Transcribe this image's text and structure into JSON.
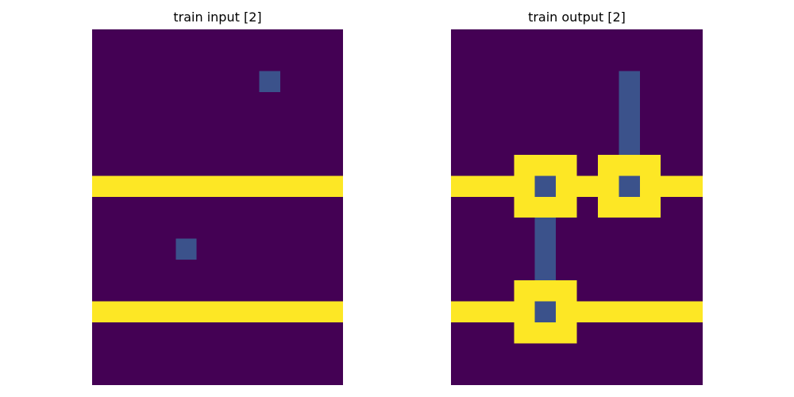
{
  "colors": {
    "0": "#440154",
    "1": "#3b528b",
    "4": "#fde725"
  },
  "panels": [
    {
      "title": "train input [2]",
      "grid": [
        [
          0,
          0,
          0,
          0,
          0,
          0,
          0,
          0,
          0,
          0,
          0,
          0
        ],
        [
          0,
          0,
          0,
          0,
          0,
          0,
          0,
          0,
          0,
          0,
          0,
          0
        ],
        [
          0,
          0,
          0,
          0,
          0,
          0,
          0,
          0,
          1,
          0,
          0,
          0
        ],
        [
          0,
          0,
          0,
          0,
          0,
          0,
          0,
          0,
          0,
          0,
          0,
          0
        ],
        [
          0,
          0,
          0,
          0,
          0,
          0,
          0,
          0,
          0,
          0,
          0,
          0
        ],
        [
          0,
          0,
          0,
          0,
          0,
          0,
          0,
          0,
          0,
          0,
          0,
          0
        ],
        [
          0,
          0,
          0,
          0,
          0,
          0,
          0,
          0,
          0,
          0,
          0,
          0
        ],
        [
          4,
          4,
          4,
          4,
          4,
          4,
          4,
          4,
          4,
          4,
          4,
          4
        ],
        [
          0,
          0,
          0,
          0,
          0,
          0,
          0,
          0,
          0,
          0,
          0,
          0
        ],
        [
          0,
          0,
          0,
          0,
          0,
          0,
          0,
          0,
          0,
          0,
          0,
          0
        ],
        [
          0,
          0,
          0,
          0,
          1,
          0,
          0,
          0,
          0,
          0,
          0,
          0
        ],
        [
          0,
          0,
          0,
          0,
          0,
          0,
          0,
          0,
          0,
          0,
          0,
          0
        ],
        [
          0,
          0,
          0,
          0,
          0,
          0,
          0,
          0,
          0,
          0,
          0,
          0
        ],
        [
          4,
          4,
          4,
          4,
          4,
          4,
          4,
          4,
          4,
          4,
          4,
          4
        ],
        [
          0,
          0,
          0,
          0,
          0,
          0,
          0,
          0,
          0,
          0,
          0,
          0
        ],
        [
          0,
          0,
          0,
          0,
          0,
          0,
          0,
          0,
          0,
          0,
          0,
          0
        ],
        [
          0,
          0,
          0,
          0,
          0,
          0,
          0,
          0,
          0,
          0,
          0,
          0
        ]
      ]
    },
    {
      "title": "train output [2]",
      "grid": [
        [
          0,
          0,
          0,
          0,
          0,
          0,
          0,
          0,
          0,
          0,
          0,
          0
        ],
        [
          0,
          0,
          0,
          0,
          0,
          0,
          0,
          0,
          0,
          0,
          0,
          0
        ],
        [
          0,
          0,
          0,
          0,
          0,
          0,
          0,
          0,
          1,
          0,
          0,
          0
        ],
        [
          0,
          0,
          0,
          0,
          0,
          0,
          0,
          0,
          1,
          0,
          0,
          0
        ],
        [
          0,
          0,
          0,
          0,
          0,
          0,
          0,
          0,
          1,
          0,
          0,
          0
        ],
        [
          0,
          0,
          0,
          0,
          0,
          0,
          0,
          0,
          1,
          0,
          0,
          0
        ],
        [
          0,
          0,
          0,
          4,
          4,
          4,
          0,
          4,
          4,
          4,
          0,
          0
        ],
        [
          4,
          4,
          4,
          4,
          1,
          4,
          4,
          4,
          1,
          4,
          4,
          4
        ],
        [
          0,
          0,
          0,
          4,
          4,
          4,
          0,
          4,
          4,
          4,
          0,
          0
        ],
        [
          0,
          0,
          0,
          0,
          1,
          0,
          0,
          0,
          0,
          0,
          0,
          0
        ],
        [
          0,
          0,
          0,
          0,
          1,
          0,
          0,
          0,
          0,
          0,
          0,
          0
        ],
        [
          0,
          0,
          0,
          0,
          1,
          0,
          0,
          0,
          0,
          0,
          0,
          0
        ],
        [
          0,
          0,
          0,
          4,
          4,
          4,
          0,
          0,
          0,
          0,
          0,
          0
        ],
        [
          4,
          4,
          4,
          4,
          1,
          4,
          4,
          4,
          4,
          4,
          4,
          4
        ],
        [
          0,
          0,
          0,
          4,
          4,
          4,
          0,
          0,
          0,
          0,
          0,
          0
        ],
        [
          0,
          0,
          0,
          0,
          0,
          0,
          0,
          0,
          0,
          0,
          0,
          0
        ],
        [
          0,
          0,
          0,
          0,
          0,
          0,
          0,
          0,
          0,
          0,
          0,
          0
        ]
      ]
    }
  ]
}
